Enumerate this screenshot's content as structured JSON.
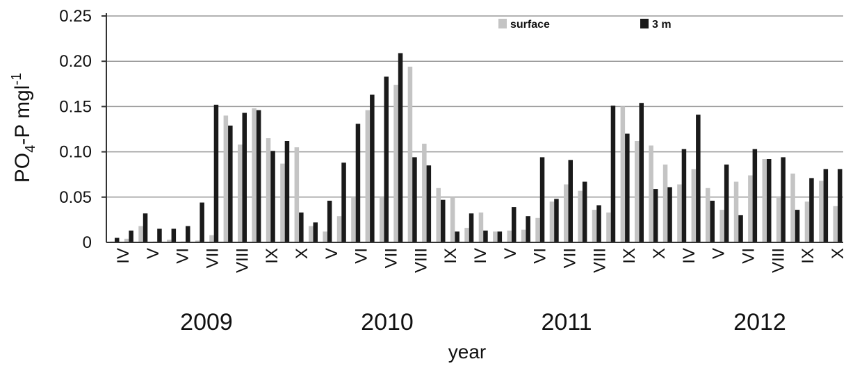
{
  "chart_data": {
    "type": "bar",
    "ylabel": {
      "pre": "PO",
      "sub": "4",
      "mid": "-P mgl",
      "sup": "-1"
    },
    "xlabel": "year",
    "ylim": [
      0,
      0.25
    ],
    "yticks": [
      "0",
      "0.05",
      "0.10",
      "0.15",
      "0.20",
      "0.25"
    ],
    "ytick_values": [
      0,
      0.05,
      0.1,
      0.15,
      0.2,
      0.25
    ],
    "grid": true,
    "legend_position": "top-right",
    "colors": {
      "surface": "#c4c4c4",
      "3 m": "#1a1a1a",
      "grid": "#999999",
      "axis": "#333333"
    },
    "series": [
      {
        "name": "surface",
        "values": [
          0.001,
          0.004,
          0.018,
          0.001,
          0.003,
          0.001,
          0.002,
          0.008,
          0.14,
          0.108,
          0.148,
          0.115,
          0.087,
          0.105,
          0.018,
          0.012,
          0.029,
          0.05,
          0.146,
          0.05,
          0.174,
          0.194,
          0.109,
          0.06,
          0.05,
          0.016,
          0.033,
          0.012,
          0.013,
          0.014,
          0.027,
          0.045,
          0.064,
          0.057,
          0.036,
          0.033,
          0.15,
          0.112,
          0.107,
          0.086,
          0.064,
          0.081,
          0.06,
          0.036,
          0.067,
          0.074,
          0.092,
          0.051,
          0.076,
          0.045,
          0.068,
          0.04
        ]
      },
      {
        "name": "3 m",
        "values": [
          0.005,
          0.013,
          0.032,
          0.015,
          0.015,
          0.018,
          0.044,
          0.152,
          0.129,
          0.143,
          0.146,
          0.101,
          0.112,
          0.033,
          0.022,
          0.046,
          0.088,
          0.131,
          0.163,
          0.183,
          0.209,
          0.094,
          0.085,
          0.047,
          0.012,
          0.032,
          0.013,
          0.012,
          0.039,
          0.029,
          0.094,
          0.048,
          0.091,
          0.067,
          0.041,
          0.151,
          0.12,
          0.154,
          0.059,
          0.061,
          0.103,
          0.141,
          0.046,
          0.086,
          0.03,
          0.103,
          0.092,
          0.094,
          0.036,
          0.071,
          0.081,
          0.081
        ]
      }
    ],
    "month_labels": [
      {
        "label": "IV"
      },
      {
        "label": "V"
      },
      {
        "label": "VI"
      },
      {
        "label": "VII"
      },
      {
        "label": "VIII"
      },
      {
        "label": "IX"
      },
      {
        "label": "X"
      },
      {
        "label": "V"
      },
      {
        "label": "VI"
      },
      {
        "label": "VII"
      },
      {
        "label": "VIII"
      },
      {
        "label": "IX"
      },
      {
        "label": "IV"
      },
      {
        "label": "V"
      },
      {
        "label": "VI"
      },
      {
        "label": "VII"
      },
      {
        "label": "VIII"
      },
      {
        "label": "IX"
      },
      {
        "label": "X"
      },
      {
        "label": "IV"
      },
      {
        "label": "V"
      },
      {
        "label": "VI"
      },
      {
        "label": "VIII"
      },
      {
        "label": "IX"
      },
      {
        "label": "X"
      }
    ],
    "years": [
      "2009",
      "2010",
      "2011",
      "2012"
    ]
  }
}
